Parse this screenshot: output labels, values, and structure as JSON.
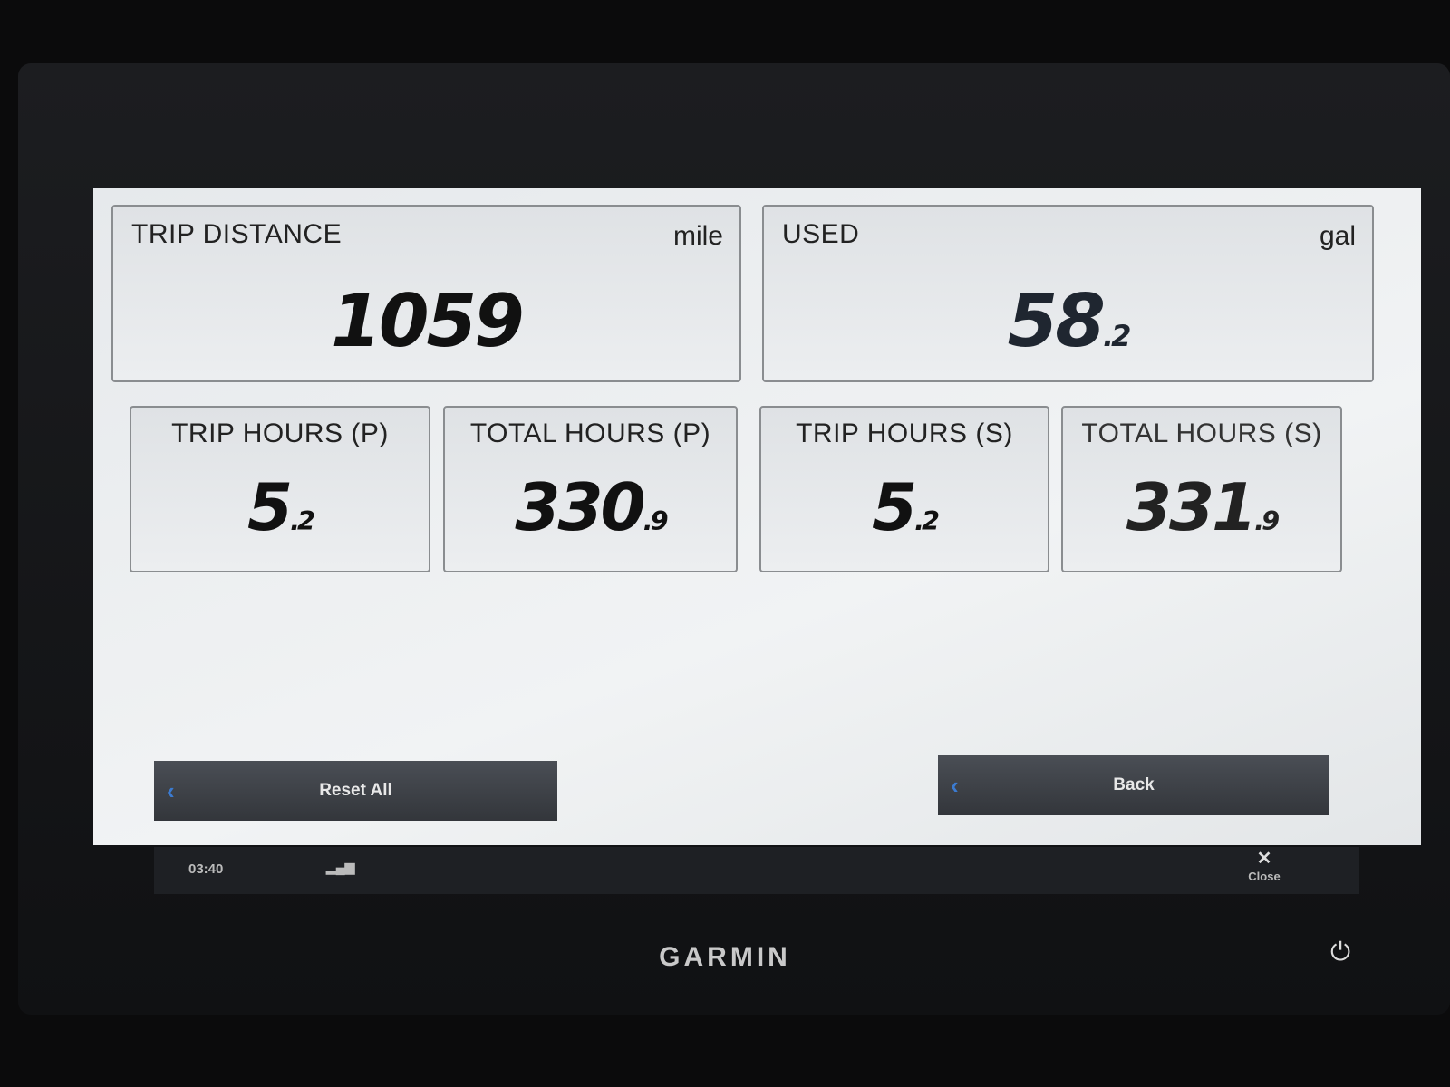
{
  "tiles_top": [
    {
      "label": "TRIP DISTANCE",
      "unit": "mile",
      "value": "1059",
      "decimal": ""
    },
    {
      "label": "USED",
      "unit": "gal",
      "value": "58",
      "decimal": ".2"
    }
  ],
  "tiles_bottom": [
    {
      "label": "TRIP HOURS (P)",
      "value": "5",
      "decimal": ".2"
    },
    {
      "label": "TOTAL HOURS (P)",
      "value": "330",
      "decimal": ".9"
    },
    {
      "label": "TRIP HOURS (S)",
      "value": "5",
      "decimal": ".2"
    },
    {
      "label": "TOTAL HOURS (S)",
      "value": "331",
      "decimal": ".9"
    }
  ],
  "buttons": {
    "reset": "Reset All",
    "back": "Back",
    "chevron": "‹"
  },
  "status": {
    "time": "03:40",
    "close": "Close",
    "close_icon": "✕"
  },
  "device": {
    "brand": "GARMIN",
    "power_icon": "⏻"
  }
}
